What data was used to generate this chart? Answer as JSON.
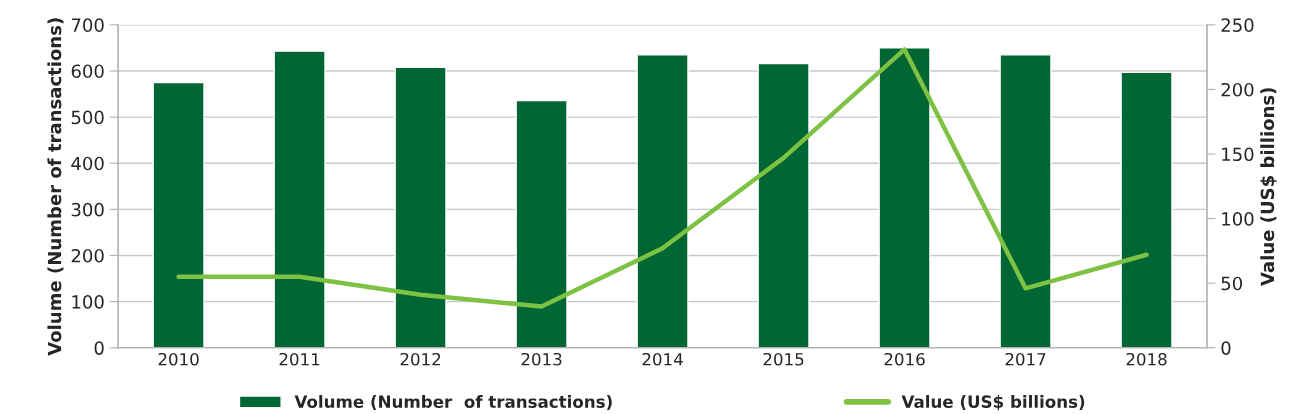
{
  "chart_data": {
    "type": "bar",
    "categories": [
      "2010",
      "2011",
      "2012",
      "2013",
      "2014",
      "2015",
      "2016",
      "2017",
      "2018"
    ],
    "series": [
      {
        "name": "Volume (Number  of transactions)",
        "color": "#006633",
        "values": [
          575,
          643,
          608,
          536,
          635,
          616,
          650,
          635,
          597
        ]
      },
      {
        "name": "Value (US$ billions)",
        "type": "line",
        "axis": "y2",
        "color": "#7dc242",
        "values": [
          55,
          55,
          41,
          32,
          77,
          147,
          231,
          46,
          72
        ]
      }
    ],
    "ylabel": "Volume (Number of transactions)",
    "y2label": "Value (US$ billions)",
    "ylim": [
      0,
      700
    ],
    "yticks": [
      0,
      100,
      200,
      300,
      400,
      500,
      600,
      700
    ],
    "y2lim": [
      0,
      250
    ],
    "y2ticks": [
      0,
      50,
      100,
      150,
      200,
      250
    ],
    "grid": "y",
    "legend": "bottom",
    "marker": "none",
    "line_style": "solid"
  }
}
